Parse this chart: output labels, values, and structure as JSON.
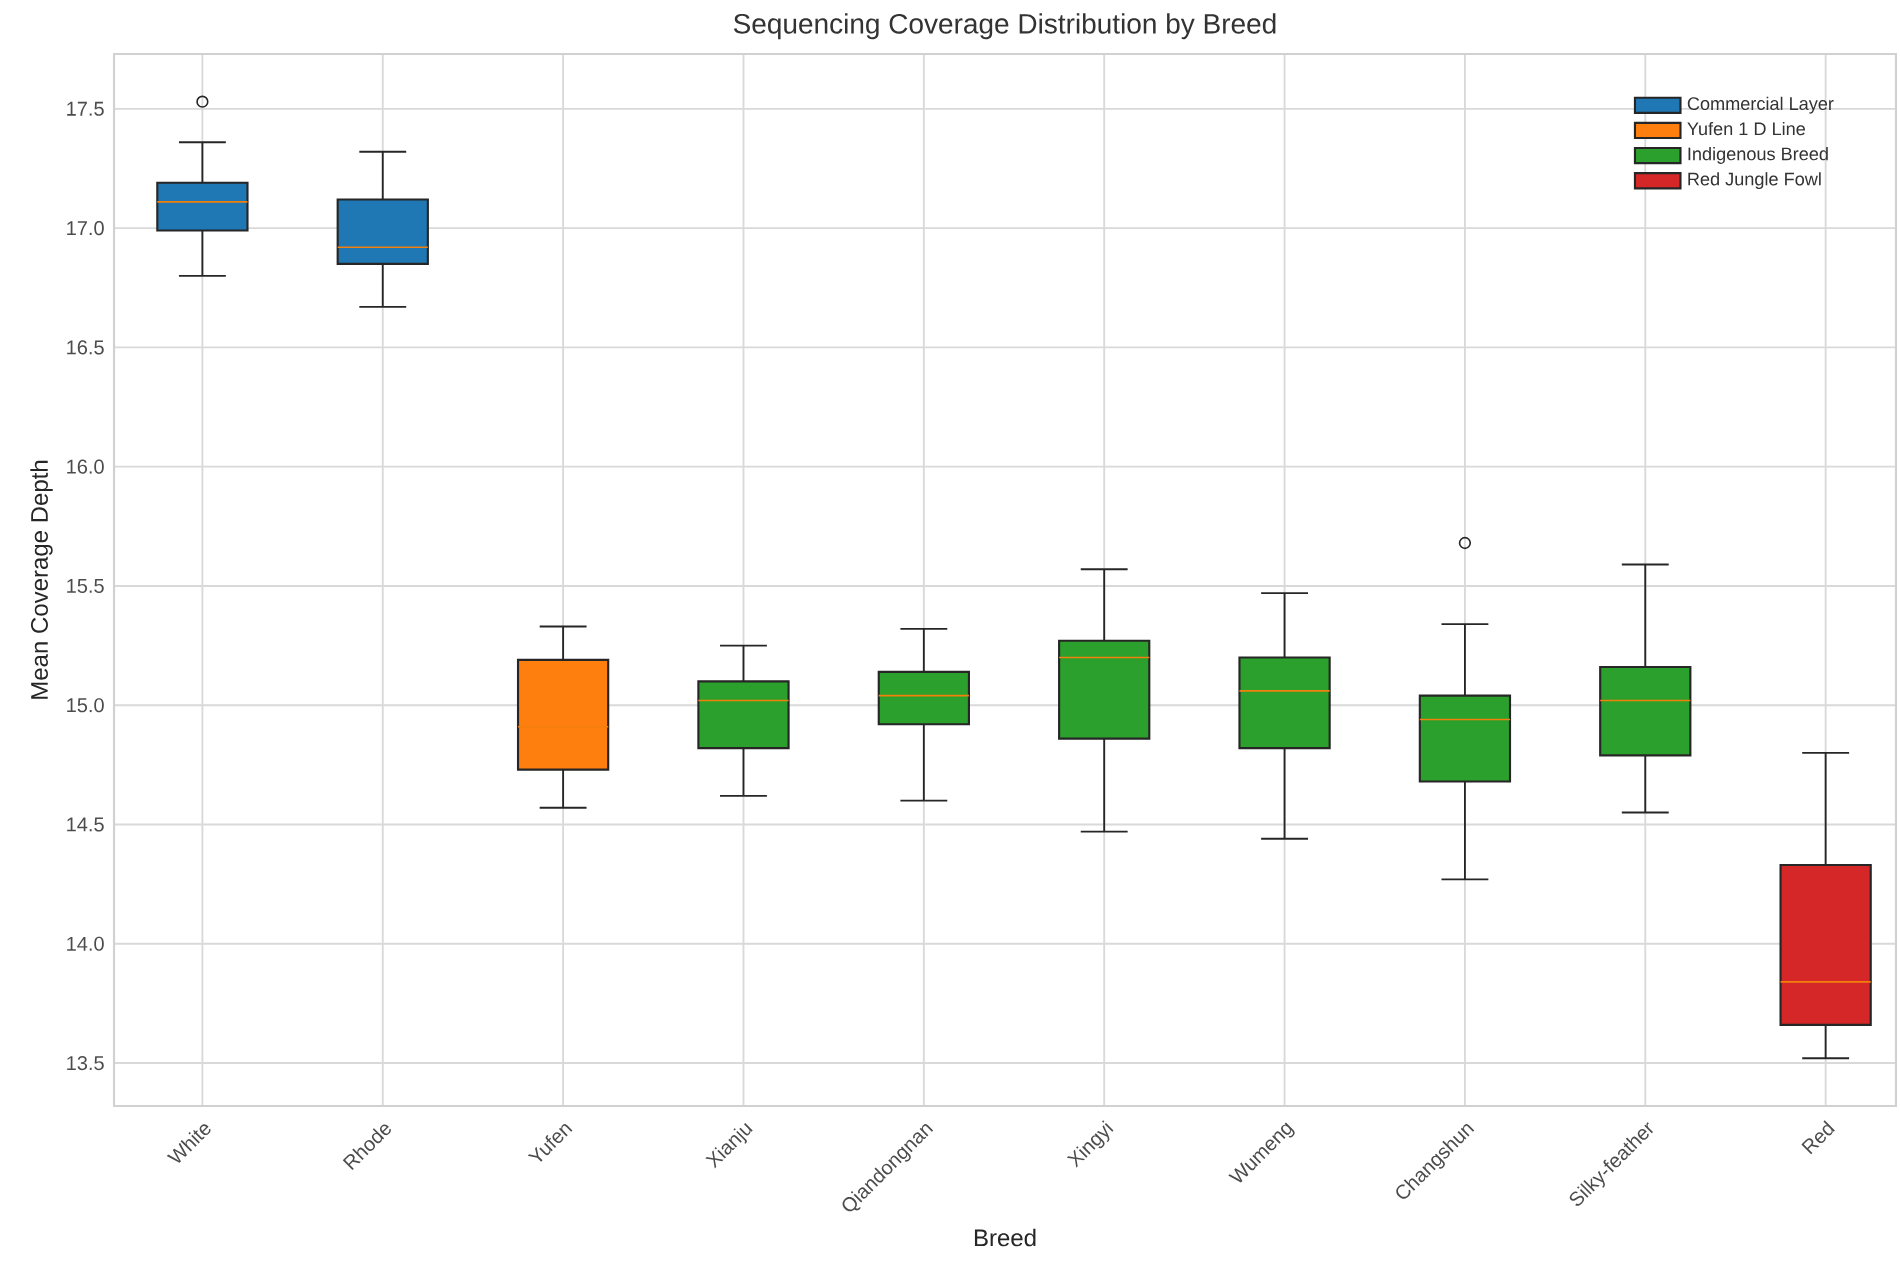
{
  "chart_data": {
    "type": "box",
    "title": "Sequencing Coverage Distribution by Breed",
    "xlabel": "Breed",
    "ylabel": "Mean Coverage Depth",
    "categories": [
      "White",
      "Rhode",
      "Yufen",
      "Xianju",
      "Qiandongnan",
      "Xingyi",
      "Wumeng",
      "Changshun",
      "Silky-feather",
      "Red"
    ],
    "series": [
      {
        "name": "Commercial Layer",
        "color": "#1f77b4",
        "boxes": [
          {
            "low": 16.8,
            "q1": 16.99,
            "median": 17.11,
            "q3": 17.19,
            "high": 17.36,
            "outliers": [
              17.53
            ]
          },
          {
            "low": 16.67,
            "q1": 16.85,
            "median": 16.92,
            "q3": 17.12,
            "high": 17.32
          },
          null,
          null,
          null,
          null,
          null,
          null,
          null,
          null
        ]
      },
      {
        "name": "Yufen 1 D Line",
        "color": "#ff7f0e",
        "boxes": [
          null,
          null,
          {
            "low": 14.57,
            "q1": 14.73,
            "median": 14.91,
            "q3": 15.19,
            "high": 15.33
          },
          null,
          null,
          null,
          null,
          null,
          null,
          null
        ]
      },
      {
        "name": "Indigenous Breed",
        "color": "#2ca02c",
        "boxes": [
          null,
          null,
          null,
          {
            "low": 14.62,
            "q1": 14.82,
            "median": 15.02,
            "q3": 15.1,
            "high": 15.25
          },
          {
            "low": 14.6,
            "q1": 14.92,
            "median": 15.04,
            "q3": 15.14,
            "high": 15.32
          },
          {
            "low": 14.47,
            "q1": 14.86,
            "median": 15.2,
            "q3": 15.27,
            "high": 15.57
          },
          {
            "low": 14.44,
            "q1": 14.82,
            "median": 15.06,
            "q3": 15.2,
            "high": 15.47
          },
          {
            "low": 14.27,
            "q1": 14.68,
            "median": 14.94,
            "q3": 15.04,
            "high": 15.34,
            "outliers": [
              15.68
            ]
          },
          {
            "low": 14.55,
            "q1": 14.79,
            "median": 15.02,
            "q3": 15.16,
            "high": 15.59
          },
          null
        ]
      },
      {
        "name": "Red Jungle Fowl",
        "color": "#d62728",
        "boxes": [
          null,
          null,
          null,
          null,
          null,
          null,
          null,
          null,
          null,
          {
            "low": 13.52,
            "q1": 13.66,
            "median": 13.84,
            "q3": 14.33,
            "high": 14.8
          }
        ]
      }
    ],
    "ylim": [
      13.32,
      17.73
    ],
    "yticks": [
      {
        "value": 13.5,
        "label": "13.5"
      },
      {
        "value": 14.0,
        "label": "14.0"
      },
      {
        "value": 14.5,
        "label": "14.5"
      },
      {
        "value": 15.0,
        "label": "15.0"
      },
      {
        "value": 15.5,
        "label": "15.5"
      },
      {
        "value": 16.0,
        "label": "16.0"
      },
      {
        "value": 16.5,
        "label": "16.5"
      },
      {
        "value": 17.0,
        "label": "17.0"
      },
      {
        "value": 17.5,
        "label": "17.5"
      }
    ],
    "grid": true,
    "legend": "top right"
  }
}
